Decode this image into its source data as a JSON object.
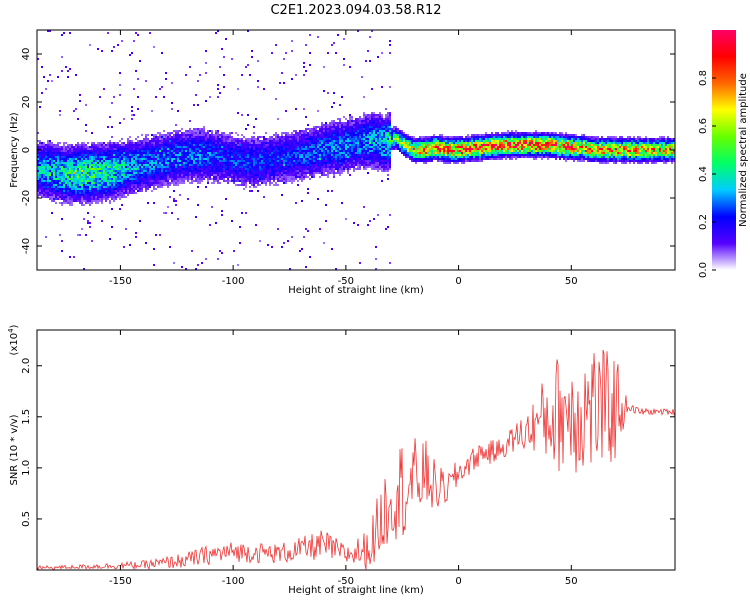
{
  "title": "C2E1.2023.094.03.58.R12",
  "chart_data": [
    {
      "type": "heatmap",
      "xlabel": "Height of straight line (km)",
      "ylabel": "Frequency (Hz)",
      "xlim": [
        -187,
        96
      ],
      "ylim": [
        -50,
        50
      ],
      "xticks": [
        -150,
        -100,
        -50,
        0,
        50
      ],
      "yticks": [
        -40,
        -20,
        0,
        20,
        40
      ],
      "grid": false,
      "colorbar": {
        "label": "Normalized spectral amplitude",
        "range": [
          0.0,
          1.0
        ],
        "ticks": [
          0.0,
          0.2,
          0.4,
          0.6,
          0.8
        ],
        "colors": [
          "#ffffff",
          "#5500ff",
          "#0000ff",
          "#00ccff",
          "#00ff66",
          "#66ff00",
          "#ffff00",
          "#ff6600",
          "#ff0000",
          "#ff0066"
        ]
      },
      "ridge": {
        "x": [
          -187,
          -175,
          -165,
          -155,
          -145,
          -135,
          -125,
          -115,
          -105,
          -95,
          -85,
          -75,
          -65,
          -55,
          -45,
          -38,
          -32,
          -28,
          -24,
          -20,
          -15,
          -10,
          -5,
          0,
          10,
          20,
          30,
          40,
          50,
          55,
          60,
          70,
          80,
          96
        ],
        "y": [
          -8,
          -10,
          -10,
          -9,
          -7,
          -5,
          -3,
          -2,
          -3,
          -5,
          -4,
          -3,
          -1,
          1,
          3,
          4,
          3,
          5,
          2,
          0,
          0,
          1,
          0,
          0,
          1,
          2,
          2,
          2,
          1,
          1,
          0,
          0,
          0,
          0
        ],
        "peak": [
          0.35,
          0.45,
          0.5,
          0.45,
          0.35,
          0.3,
          0.3,
          0.3,
          0.25,
          0.25,
          0.25,
          0.25,
          0.28,
          0.3,
          0.3,
          0.35,
          0.4,
          0.5,
          0.6,
          0.7,
          0.8,
          0.85,
          0.88,
          0.9,
          0.9,
          0.92,
          0.9,
          0.88,
          0.85,
          0.8,
          0.8,
          0.8,
          0.78,
          0.75
        ]
      }
    },
    {
      "type": "line",
      "xlabel": "Height of straight line (km)",
      "ylabel": "SNR (10 * v/v)",
      "yscale_label": "(x10",
      "yscale_exp": "4",
      "xlim": [
        -187,
        96
      ],
      "ylim": [
        0.0,
        2.35
      ],
      "xticks": [
        -150,
        -100,
        -50,
        0,
        50
      ],
      "yticks": [
        0.5,
        1.0,
        1.5,
        2.0
      ],
      "grid": false,
      "series": [
        {
          "color": "#ee3333",
          "x": [
            -187,
            -170,
            -155,
            -140,
            -130,
            -120,
            -110,
            -100,
            -90,
            -80,
            -70,
            -60,
            -50,
            -40,
            -35,
            -30,
            -25,
            -20,
            -15,
            -10,
            -5,
            0,
            5,
            10,
            15,
            20,
            25,
            30,
            35,
            40,
            45,
            50,
            55,
            60,
            65,
            70,
            75,
            80,
            85,
            90,
            96
          ],
          "y": [
            0.02,
            0.03,
            0.04,
            0.05,
            0.07,
            0.1,
            0.15,
            0.18,
            0.17,
            0.16,
            0.2,
            0.25,
            0.15,
            0.2,
            0.45,
            0.75,
            0.8,
            0.85,
            0.95,
            0.8,
            0.8,
            0.95,
            1.05,
            1.15,
            1.15,
            1.2,
            1.3,
            1.35,
            1.45,
            1.5,
            1.55,
            1.55,
            1.55,
            1.6,
            1.55,
            1.6,
            1.6,
            1.55,
            1.55,
            1.55,
            1.55
          ],
          "noise_amp": [
            0.02,
            0.02,
            0.03,
            0.04,
            0.06,
            0.08,
            0.1,
            0.1,
            0.1,
            0.1,
            0.12,
            0.15,
            0.1,
            0.2,
            0.35,
            0.45,
            0.5,
            0.45,
            0.35,
            0.25,
            0.15,
            0.15,
            0.12,
            0.12,
            0.12,
            0.1,
            0.15,
            0.2,
            0.3,
            0.5,
            0.6,
            0.6,
            0.65,
            0.65,
            0.6,
            0.55,
            0.04,
            0.04,
            0.03,
            0.03,
            0.03
          ]
        }
      ]
    }
  ]
}
